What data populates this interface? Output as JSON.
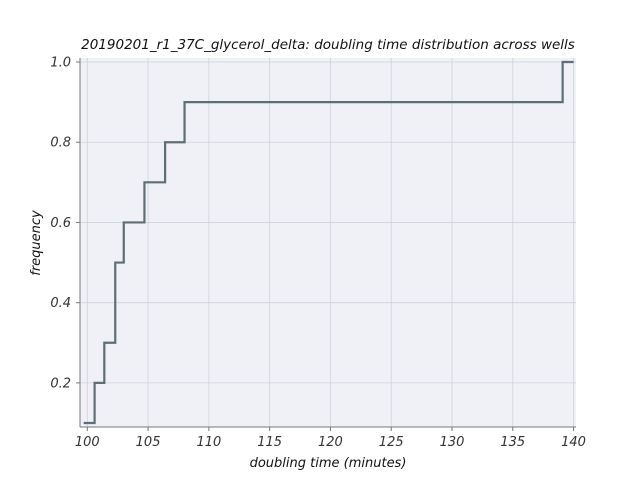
{
  "chart_data": {
    "type": "line",
    "step": "post",
    "title": "20190201_r1_37C_glycerol_delta: doubling time distribution across wells",
    "xlabel": "doubling time (minutes)",
    "ylabel": "frequency",
    "xlim": [
      99.4,
      140.2
    ],
    "ylim": [
      0.09,
      1.01
    ],
    "xticks": [
      100,
      105,
      110,
      115,
      120,
      125,
      130,
      135,
      140
    ],
    "yticks": [
      0.2,
      0.4,
      0.6,
      0.8,
      1.0
    ],
    "xtick_labels": [
      "100",
      "105",
      "110",
      "115",
      "120",
      "125",
      "130",
      "135",
      "140"
    ],
    "ytick_labels": [
      "0.2",
      "0.4",
      "0.6",
      "0.8",
      "1.0"
    ],
    "grid": true,
    "series": [
      {
        "color": "#5e6e75",
        "x": [
          99.7,
          100.6,
          101.4,
          102.3,
          103.0,
          104.7,
          106.4,
          108.0,
          139.1,
          140.0
        ],
        "y": [
          0.1,
          0.2,
          0.3,
          0.5,
          0.6,
          0.7,
          0.8,
          0.9,
          1.0,
          1.0
        ]
      }
    ],
    "colors": {
      "background": "#eff1f6",
      "grid": "#cfd3da",
      "axis": "#777777"
    }
  }
}
